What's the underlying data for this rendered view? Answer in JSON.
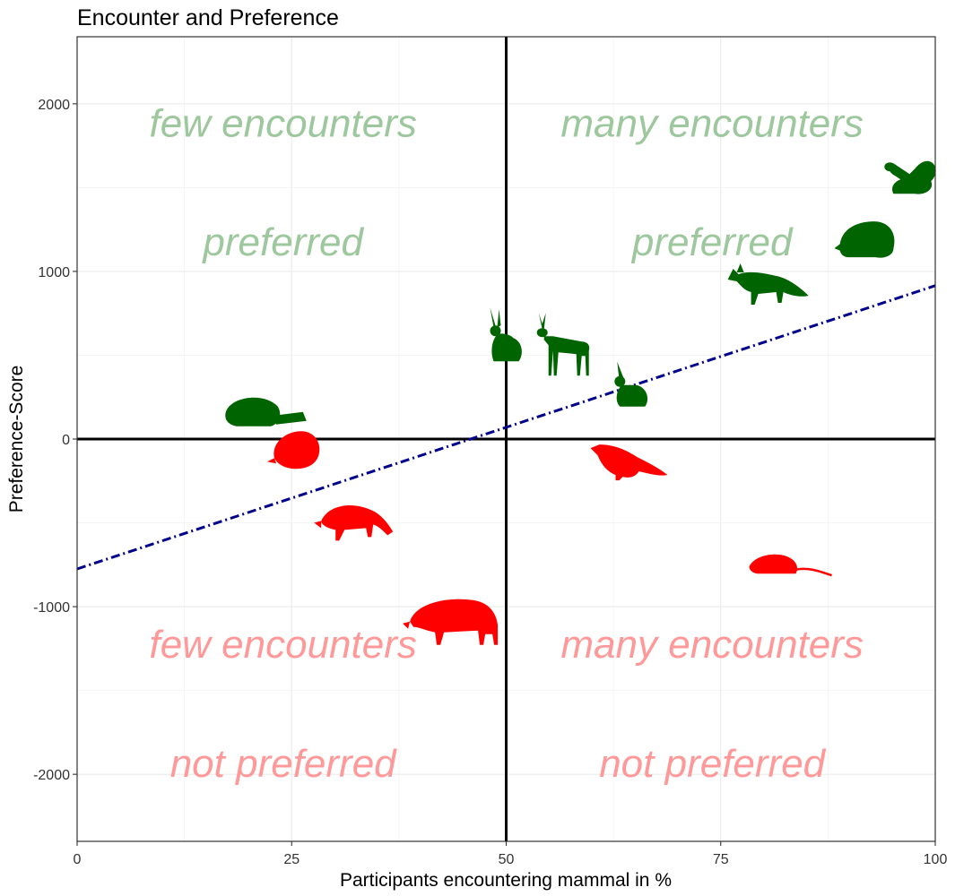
{
  "chart_data": {
    "type": "scatter",
    "title": "Encounter and Preference",
    "xlabel": "Participants encountering mammal in %",
    "ylabel": "Preference-Score",
    "xlim": [
      0,
      100
    ],
    "ylim": [
      -2400,
      2400
    ],
    "x_ticks": [
      0,
      25,
      50,
      75,
      100
    ],
    "y_ticks": [
      -2000,
      -1000,
      0,
      1000,
      2000
    ],
    "x_tick_labels": [
      "0",
      "25",
      "50",
      "75",
      "100"
    ],
    "y_tick_labels": [
      "-2000",
      "-1000",
      "0",
      "1000",
      "2000"
    ],
    "grid": true,
    "reference_lines": {
      "x": 50,
      "y": 0
    },
    "trend_line": {
      "style": "dot-dash",
      "color": "#00008B",
      "x": [
        0,
        100
      ],
      "y": [
        -775,
        915
      ]
    },
    "quadrant_labels": [
      {
        "line1": "few encounters",
        "line2": "preferred",
        "x": 24,
        "y1": 1880,
        "y2": 1170,
        "color": "#9DC79D"
      },
      {
        "line1": "many encounters",
        "line2": "preferred",
        "x": 74,
        "y1": 1880,
        "y2": 1170,
        "color": "#9DC79D"
      },
      {
        "line1": "few encounters",
        "line2": "not preferred",
        "x": 24,
        "y1": -1230,
        "y2": -1940,
        "color": "#FF9999"
      },
      {
        "line1": "many encounters",
        "line2": "not preferred",
        "x": 74,
        "y1": -1230,
        "y2": -1940,
        "color": "#FF9999"
      }
    ],
    "points": [
      {
        "icon": "squirrel-icon",
        "x": 97,
        "y": 1560,
        "color": "#006400"
      },
      {
        "icon": "hedgehog-icon",
        "x": 92,
        "y": 1170,
        "color": "#006400"
      },
      {
        "icon": "fox-icon",
        "x": 80,
        "y": 930,
        "color": "#006400"
      },
      {
        "icon": "hare-icon",
        "x": 50,
        "y": 560,
        "color": "#006400"
      },
      {
        "icon": "deer-icon",
        "x": 56.5,
        "y": 560,
        "color": "#006400"
      },
      {
        "icon": "rabbit-icon",
        "x": 64.5,
        "y": 290,
        "color": "#006400"
      },
      {
        "icon": "beaver-icon",
        "x": 21.5,
        "y": 140,
        "color": "#006400"
      },
      {
        "icon": "mole-icon",
        "x": 25.5,
        "y": -60,
        "color": "#FF0000"
      },
      {
        "icon": "marten-icon",
        "x": 64,
        "y": -150,
        "color": "#FF0000"
      },
      {
        "icon": "raccoon-icon",
        "x": 32,
        "y": -510,
        "color": "#FF0000"
      },
      {
        "icon": "rat-icon",
        "x": 82.5,
        "y": -760,
        "color": "#FF0000"
      },
      {
        "icon": "wild-boar-icon",
        "x": 44,
        "y": -1110,
        "color": "#FF0000"
      }
    ]
  }
}
